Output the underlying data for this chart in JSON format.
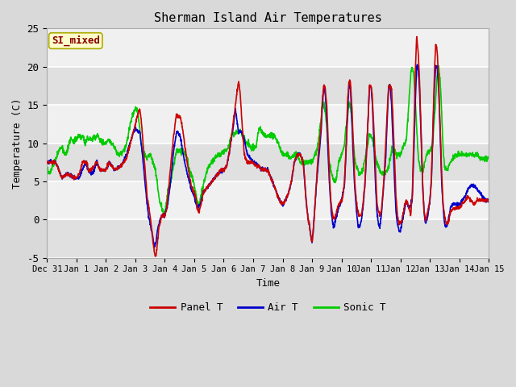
{
  "title": "Sherman Island Air Temperatures",
  "xlabel": "Time",
  "ylabel": "Temperature (C)",
  "ylim": [
    -5,
    25
  ],
  "xlim": [
    0,
    15
  ],
  "fig_bg_color": "#d9d9d9",
  "plot_bg_color": "#e8e8e8",
  "panel_color": "#cc0000",
  "air_color": "#0000cc",
  "sonic_color": "#00cc00",
  "annotation_text": "SI_mixed",
  "annotation_text_color": "#8b0000",
  "annotation_bg_color": "#ffffcc",
  "legend_items": [
    "Panel T",
    "Air T",
    "Sonic T"
  ],
  "xtick_labels": [
    "Dec 31",
    "Jan 1 ",
    " Jan 2",
    " Jan 3",
    " Jan 4",
    " Jan 5",
    " Jan 6",
    " Jan 7",
    " Jan 8",
    " Jan 9",
    "Jan 10",
    "Jan 11",
    "Jan 12",
    "Jan 13",
    "Jan 14",
    "Jan 15"
  ],
  "ytick_labels": [
    "-5",
    "0",
    "5",
    "10",
    "15",
    "20",
    "25"
  ],
  "ytick_values": [
    -5,
    0,
    5,
    10,
    15,
    20,
    25
  ],
  "linewidth": 1.2
}
